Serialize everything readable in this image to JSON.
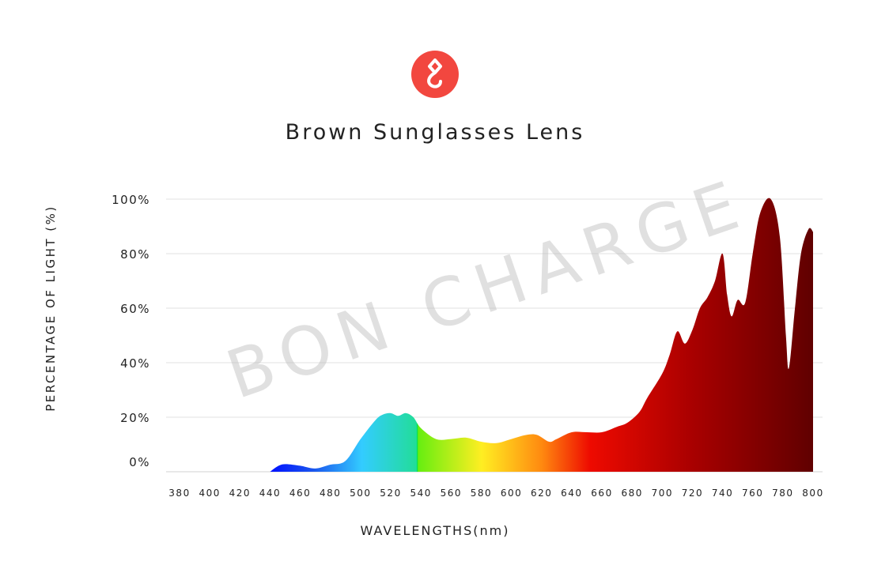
{
  "chart_data": {
    "type": "area",
    "title": "Brown Sunglasses Lens",
    "xlabel": "WAVELENGTHS(nm)",
    "ylabel": "PERCENTAGE OF LIGHT (%)",
    "watermark": "BON CHARGE",
    "xlim": [
      380,
      800
    ],
    "ylim": [
      0,
      100
    ],
    "xticks": [
      380,
      400,
      420,
      440,
      460,
      480,
      500,
      520,
      540,
      560,
      580,
      600,
      620,
      640,
      660,
      680,
      700,
      720,
      740,
      760,
      780,
      800
    ],
    "yticks": [
      0,
      20,
      40,
      60,
      80,
      100
    ],
    "ytick_labels": [
      "0%",
      "20%",
      "40%",
      "60%",
      "80%",
      "100%"
    ],
    "grid": true,
    "fill": "spectral rainbow gradient by wavelength",
    "brand_color": "#f2473f",
    "x": [
      440,
      445,
      450,
      460,
      470,
      480,
      490,
      500,
      510,
      515,
      520,
      525,
      530,
      535,
      540,
      550,
      560,
      570,
      580,
      590,
      600,
      610,
      617,
      625,
      630,
      640,
      650,
      660,
      670,
      677,
      685,
      690,
      700,
      705,
      710,
      715,
      720,
      725,
      730,
      735,
      740,
      743,
      746,
      750,
      755,
      760,
      765,
      772,
      778,
      782,
      784,
      788,
      792,
      797,
      800
    ],
    "y": [
      0,
      2,
      2.8,
      2.2,
      1.2,
      2.6,
      4,
      12,
      19,
      21,
      21.5,
      20.5,
      21.5,
      20,
      16,
      12,
      12,
      12.5,
      11,
      10.5,
      12,
      13.5,
      13.5,
      11,
      12,
      14.5,
      14.5,
      14.5,
      16.5,
      18,
      22,
      27,
      36,
      43,
      51.5,
      47,
      52,
      60,
      64,
      70,
      80,
      65,
      57,
      63,
      62,
      80,
      95,
      100,
      86,
      50,
      38,
      60,
      80,
      89,
      88
    ]
  }
}
